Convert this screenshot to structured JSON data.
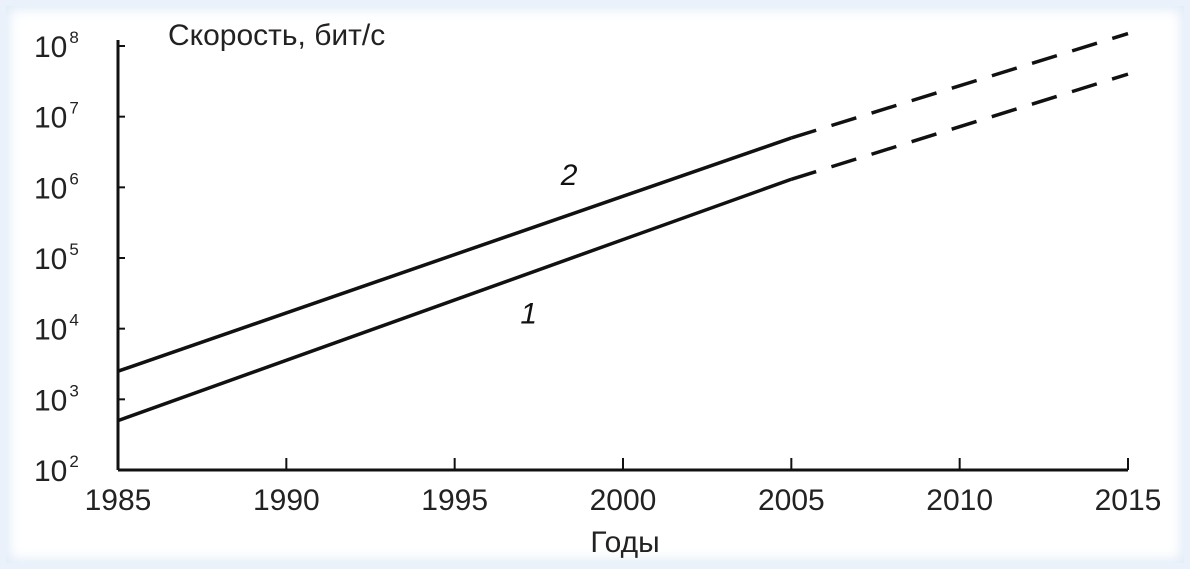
{
  "chart_data": {
    "type": "line",
    "title": "Скорость, бит/с",
    "xlabel": "Годы",
    "ylabel": "Скорость, бит/с",
    "y_scale": "log10",
    "xlim": [
      1985,
      2015
    ],
    "ylim": [
      100,
      100000000
    ],
    "x_ticks": [
      "1985",
      "1990",
      "1995",
      "2000",
      "2005",
      "2010",
      "2015"
    ],
    "y_ticks": [
      {
        "base": "10",
        "exp": "2"
      },
      {
        "base": "10",
        "exp": "3"
      },
      {
        "base": "10",
        "exp": "4"
      },
      {
        "base": "10",
        "exp": "5"
      },
      {
        "base": "10",
        "exp": "6"
      },
      {
        "base": "10",
        "exp": "7"
      },
      {
        "base": "10",
        "exp": "8"
      }
    ],
    "grid": false,
    "series": [
      {
        "name": "1",
        "color": "#111111",
        "x": [
          1985,
          2005,
          2015
        ],
        "y": [
          500,
          1300000,
          40000000
        ],
        "solid_until": 2005,
        "projection_style": "dashed"
      },
      {
        "name": "2",
        "color": "#111111",
        "x": [
          1985,
          2005,
          2015
        ],
        "y": [
          2500,
          5000000,
          150000000
        ],
        "solid_until": 2005,
        "projection_style": "dashed"
      }
    ]
  }
}
